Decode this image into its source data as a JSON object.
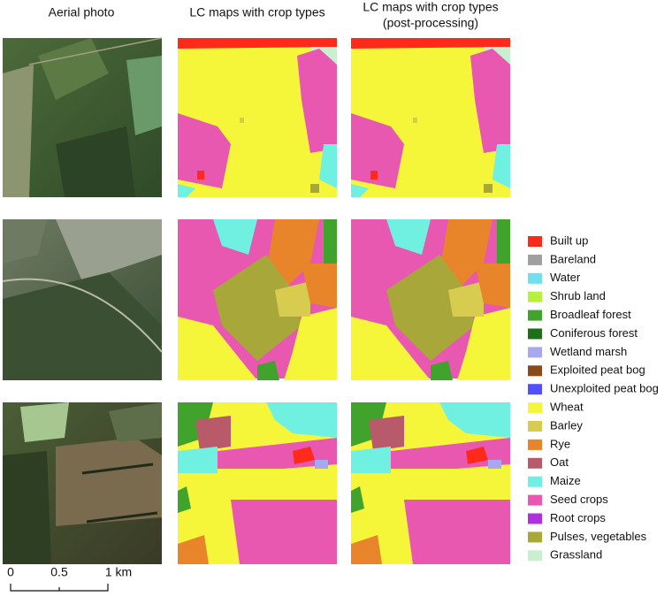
{
  "headers": [
    "Aerial photo",
    "LC maps with crop types",
    "LC maps with crop types",
    "(post-processing)"
  ],
  "legend": [
    {
      "label": "Built up",
      "color": "#ff2a1a"
    },
    {
      "label": "Bareland",
      "color": "#a0a0a0"
    },
    {
      "label": "Water",
      "color": "#70e0ec"
    },
    {
      "label": "Shrub land",
      "color": "#b8f040"
    },
    {
      "label": "Broadleaf forest",
      "color": "#40a42c"
    },
    {
      "label": "Coniferous forest",
      "color": "#1f6e1a"
    },
    {
      "label": "Wetland marsh",
      "color": "#a8a8f0"
    },
    {
      "label": "Exploited peat bog",
      "color": "#8a4a1a"
    },
    {
      "label": "Unexploited peat bog",
      "color": "#5050ff"
    },
    {
      "label": "Wheat",
      "color": "#f5f53a"
    },
    {
      "label": "Barley",
      "color": "#d8cc50"
    },
    {
      "label": "Rye",
      "color": "#e8842a"
    },
    {
      "label": "Oat",
      "color": "#b85a6a"
    },
    {
      "label": "Maize",
      "color": "#70f0e0"
    },
    {
      "label": "Seed crops",
      "color": "#e858b0"
    },
    {
      "label": "Root crops",
      "color": "#b030e0"
    },
    {
      "label": "Pulses, vegetables",
      "color": "#a8a83a"
    },
    {
      "label": "Grassland",
      "color": "#c8f0d0"
    }
  ],
  "scale_bar": [
    "0",
    "0.5",
    "1 km"
  ]
}
